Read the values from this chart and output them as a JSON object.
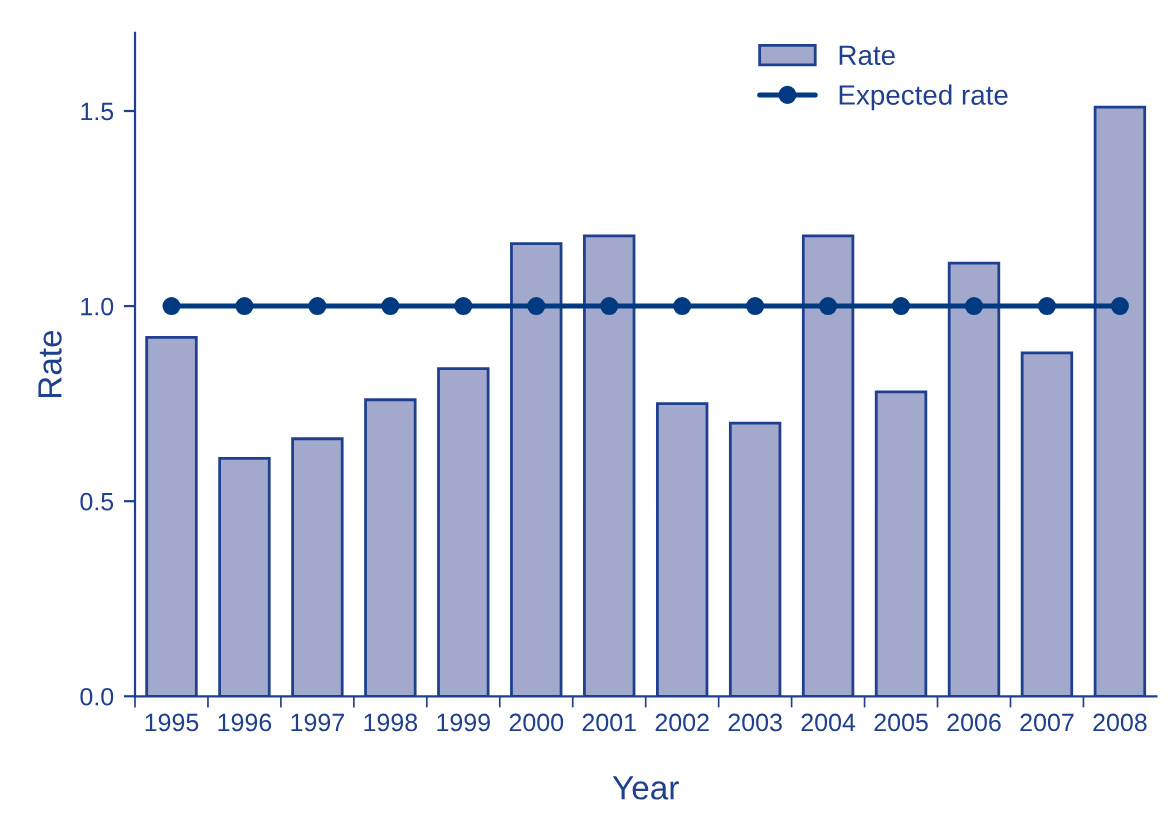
{
  "chart_data": {
    "type": "bar",
    "xlabel": "Year",
    "ylabel": "Rate",
    "categories": [
      "1995",
      "1996",
      "1997",
      "1998",
      "1999",
      "2000",
      "2001",
      "2002",
      "2003",
      "2004",
      "2005",
      "2006",
      "2007",
      "2008"
    ],
    "series": [
      {
        "name": "Rate",
        "color": "#a3a9cc",
        "values": [
          0.92,
          0.61,
          0.66,
          0.76,
          0.84,
          1.16,
          1.18,
          0.75,
          0.7,
          1.18,
          0.78,
          1.11,
          0.88,
          1.51
        ]
      },
      {
        "name": "Expected rate",
        "type": "line",
        "color": "#003a80",
        "marker": "circle",
        "values": [
          1.0,
          1.0,
          1.0,
          1.0,
          1.0,
          1.0,
          1.0,
          1.0,
          1.0,
          1.0,
          1.0,
          1.0,
          1.0,
          1.0
        ]
      }
    ],
    "ylim": [
      0,
      1.7
    ],
    "yticks": [
      {
        "value": 0,
        "label": "0.0"
      },
      {
        "value": 0.5,
        "label": "0.5"
      },
      {
        "value": 1.0,
        "label": "1.0"
      },
      {
        "value": 1.5,
        "label": "1.5"
      }
    ],
    "grid": false,
    "legend": "top right"
  }
}
